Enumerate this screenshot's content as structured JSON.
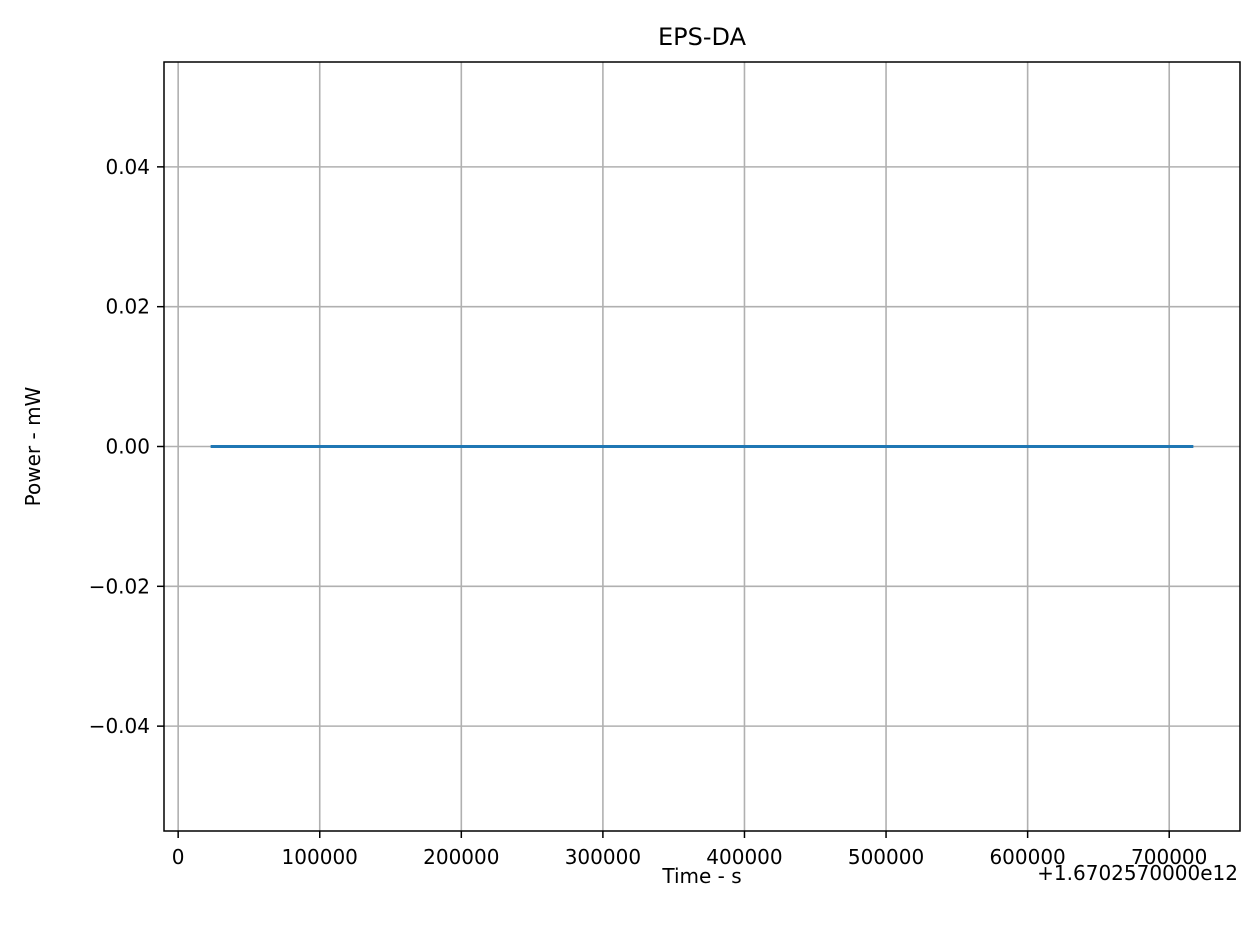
{
  "chart_data": {
    "type": "line",
    "title": "EPS-DA",
    "xlabel": "Time - s",
    "ylabel": "Power - mW",
    "x_offset_label": "+1.6702570000e12",
    "xlim": [
      -10000,
      750000
    ],
    "ylim": [
      -0.055,
      0.055
    ],
    "x_ticks": [
      0,
      100000,
      200000,
      300000,
      400000,
      500000,
      600000,
      700000
    ],
    "x_tick_labels": [
      "0",
      "100000",
      "200000",
      "300000",
      "400000",
      "500000",
      "600000",
      "700000"
    ],
    "y_ticks": [
      -0.04,
      -0.02,
      0.0,
      0.02,
      0.04
    ],
    "y_tick_labels": [
      "−0.04",
      "−0.02",
      "0.00",
      "0.02",
      "0.04"
    ],
    "grid": true,
    "series": [
      {
        "color": "#1f77b4",
        "x": [
          24000,
          716000
        ],
        "y": [
          0,
          0
        ]
      }
    ]
  }
}
